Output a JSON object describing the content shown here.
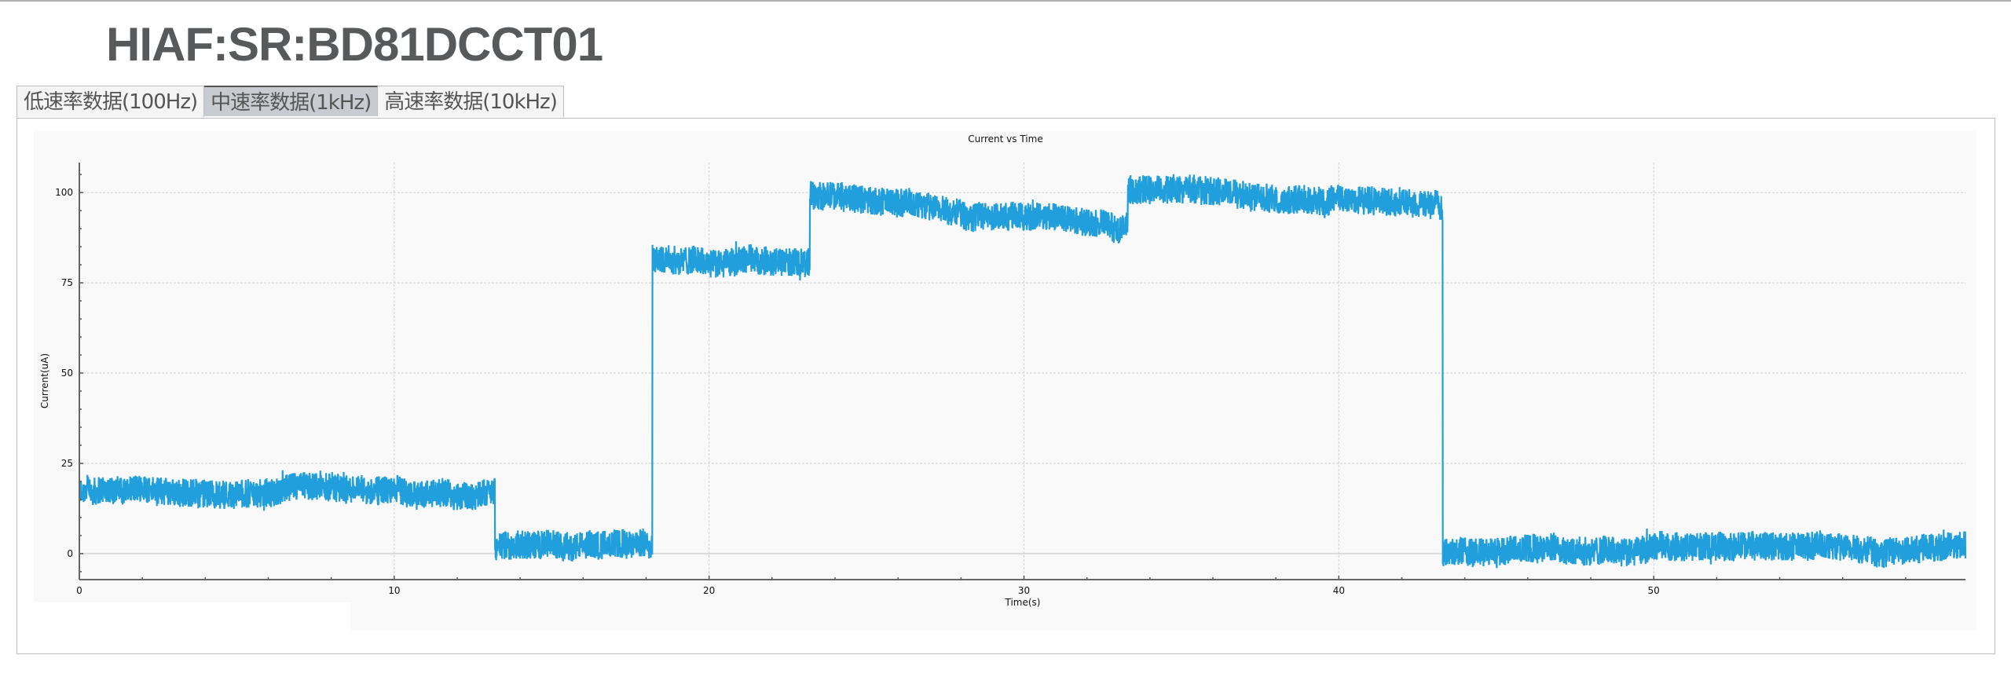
{
  "page": {
    "title": "HIAF:SR:BD81DCCT01"
  },
  "tabs": [
    {
      "label": "低速率数据(100Hz)",
      "active": false
    },
    {
      "label": "中速率数据(1kHz)",
      "active": true
    },
    {
      "label": "高速率数据(10kHz)",
      "active": false
    }
  ],
  "chart_data": {
    "type": "line",
    "title": "Current vs Time",
    "xlabel": "Time(s)",
    "ylabel": "Current(uA)",
    "xlim": [
      0,
      59.9
    ],
    "ylim": [
      -7.2,
      108.3
    ],
    "xticks": [
      "0",
      "10",
      "20",
      "30",
      "40",
      "50"
    ],
    "yticks": [
      "0",
      "25",
      "50",
      "75",
      "100"
    ],
    "grid": true,
    "line_color": "#209fdc",
    "series": [
      {
        "noise_amplitude": 4,
        "segments": [
          {
            "t_start": 0,
            "t_end": 13.2,
            "level_start": 17,
            "level_end": 17
          },
          {
            "t_start": 13.2,
            "t_end": 18.2,
            "level_start": 2,
            "level_end": 2
          },
          {
            "t_start": 18.2,
            "t_end": 23.2,
            "level_start": 82,
            "level_end": 80
          },
          {
            "t_start": 23.2,
            "t_end": 33.3,
            "level_start": 99,
            "level_end": 91
          },
          {
            "t_start": 33.3,
            "t_end": 43.3,
            "level_start": 102,
            "level_end": 97
          },
          {
            "t_start": 43.3,
            "t_end": 59.9,
            "level_start": 1,
            "level_end": 2
          }
        ]
      }
    ]
  }
}
